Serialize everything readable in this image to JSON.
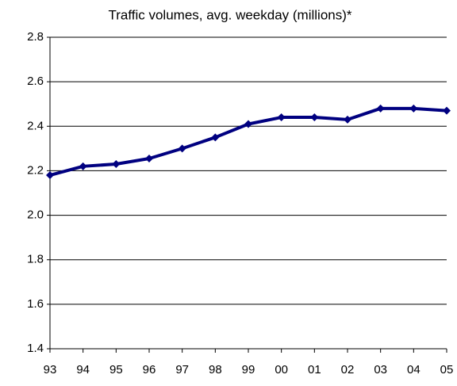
{
  "chart_data": {
    "type": "line",
    "title": "Traffic volumes, avg. weekday (millions)*",
    "categories": [
      "93",
      "94",
      "95",
      "96",
      "97",
      "98",
      "99",
      "00",
      "01",
      "02",
      "03",
      "04",
      "05"
    ],
    "series": [
      {
        "name": "Traffic volumes",
        "color": "#000080",
        "values": [
          2.18,
          2.22,
          2.23,
          2.255,
          2.3,
          2.35,
          2.41,
          2.44,
          2.44,
          2.43,
          2.48,
          2.48,
          2.47
        ]
      }
    ],
    "ylim": [
      1.4,
      2.8
    ],
    "yticks": [
      1.4,
      1.6,
      1.8,
      {
        "value": 2.0,
        "label": "2.0"
      },
      2.2,
      2.4,
      2.6,
      2.8
    ],
    "grid": true
  }
}
